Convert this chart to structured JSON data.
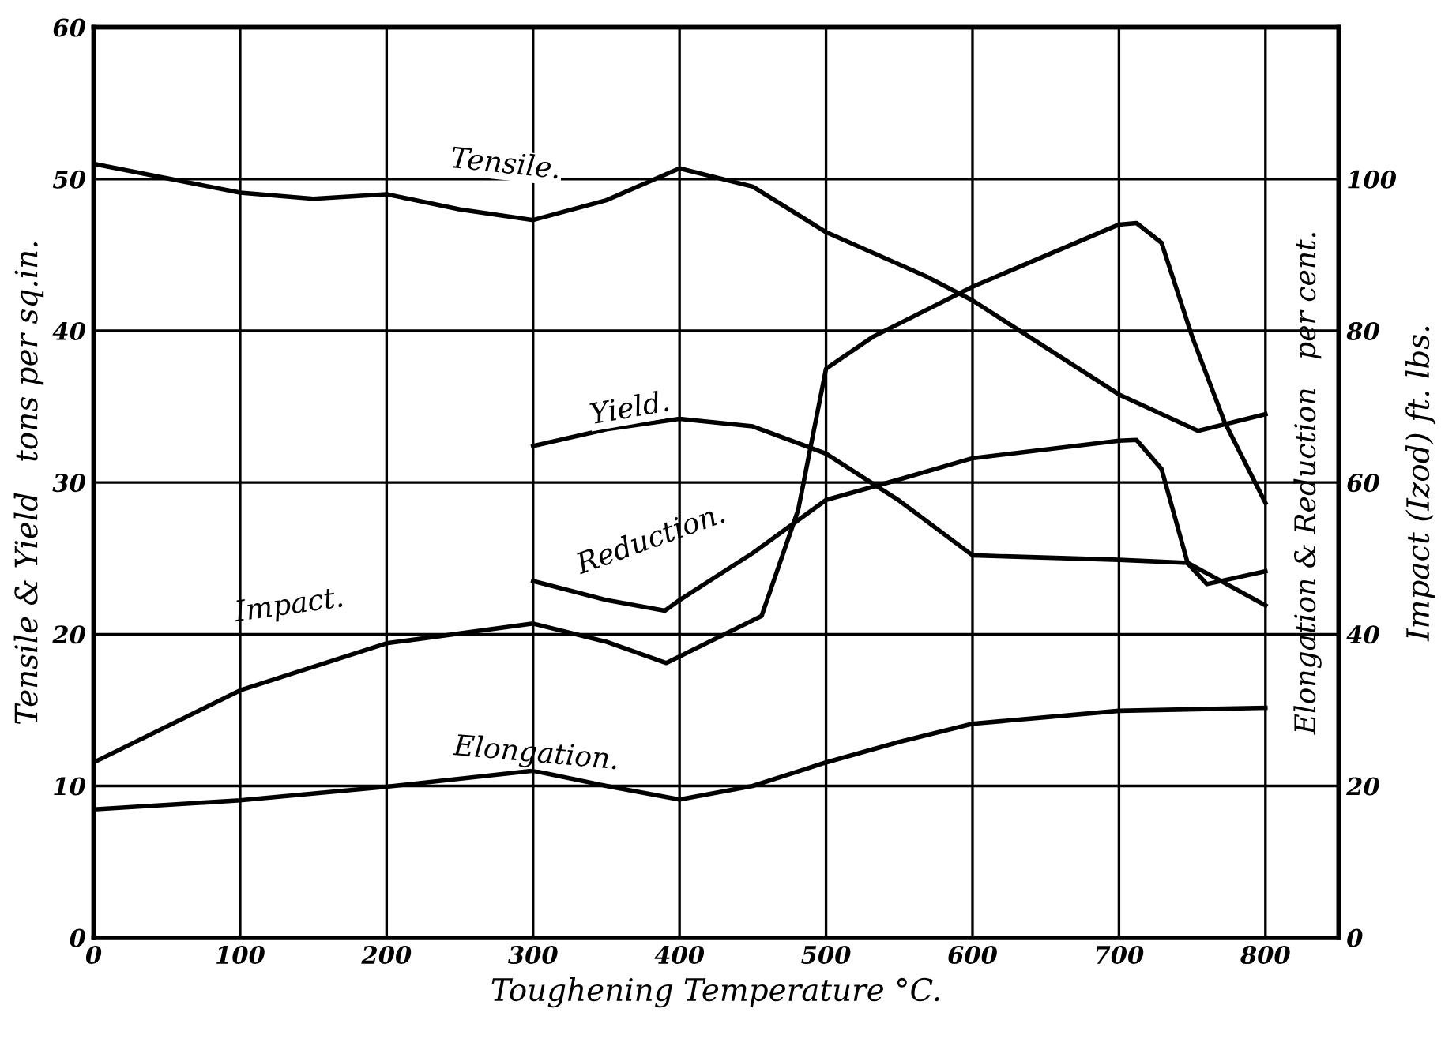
{
  "chart_data": {
    "type": "line",
    "xlabel": "Toughening Temperature °C.",
    "ylabel": "Tensile & Yield   tons per sq.in.",
    "y2label": "Impact (Izod) ft. lbs.",
    "annotations": [
      "Elongation & Reduction   per cent."
    ],
    "xlim": [
      0,
      850
    ],
    "xticks": [
      0,
      100,
      200,
      300,
      400,
      500,
      600,
      700,
      800
    ],
    "ylim": [
      0,
      60
    ],
    "yticks": [
      0,
      10,
      20,
      30,
      40,
      50,
      60
    ],
    "y2lim": [
      0,
      120
    ],
    "y2ticks": [
      0,
      20,
      40,
      60,
      80,
      100
    ],
    "grid": true,
    "legend": false,
    "marker": "none",
    "line_style": "solid",
    "series": [
      {
        "name": "Tensile.",
        "color": "#000000",
        "x": [
          0,
          100,
          150,
          200,
          250,
          300,
          350,
          400,
          450,
          500,
          568,
          600,
          700,
          754,
          800
        ],
        "values": [
          51.0,
          49.1,
          48.7,
          49.0,
          48.0,
          47.3,
          48.6,
          50.7,
          49.5,
          46.5,
          43.6,
          42.0,
          35.8,
          33.4,
          34.5
        ]
      },
      {
        "name": "Yield.",
        "color": "#000000",
        "x": [
          300,
          350,
          400,
          450,
          500,
          550,
          600,
          700,
          747,
          800
        ],
        "values": [
          32.4,
          33.5,
          34.2,
          33.7,
          31.9,
          28.8,
          25.2,
          24.9,
          24.7,
          21.9
        ]
      },
      {
        "name": "Reduction.",
        "color": "#000000",
        "axis": "y2",
        "x": [
          300,
          350,
          390,
          400,
          450,
          500,
          550,
          600,
          700,
          712,
          729,
          747,
          760,
          800
        ],
        "values": [
          47,
          44.5,
          43.1,
          44.5,
          50.7,
          57.7,
          60.4,
          63.2,
          65.5,
          65.6,
          61.8,
          49.3,
          46.6,
          48.3
        ]
      },
      {
        "name": "Impact.",
        "color": "#000000",
        "axis": "y2",
        "x": [
          0,
          100,
          200,
          300,
          350,
          391,
          456,
          481,
          500,
          532,
          600,
          700,
          712,
          729,
          750,
          772,
          800
        ],
        "values": [
          23.1,
          32.6,
          38.8,
          41.4,
          39,
          36.2,
          42.4,
          56.4,
          75,
          79.2,
          85.8,
          94.0,
          94.2,
          91.6,
          79.2,
          68,
          57.3
        ]
      },
      {
        "name": "Elongation.",
        "color": "#000000",
        "axis": "y2",
        "x": [
          0,
          100,
          200,
          300,
          350,
          400,
          450,
          500,
          550,
          600,
          700,
          800
        ],
        "values": [
          16.9,
          18.1,
          19.9,
          22.0,
          20,
          18.2,
          20,
          23.1,
          25.8,
          28.2,
          29.9,
          30.3
        ]
      }
    ]
  }
}
